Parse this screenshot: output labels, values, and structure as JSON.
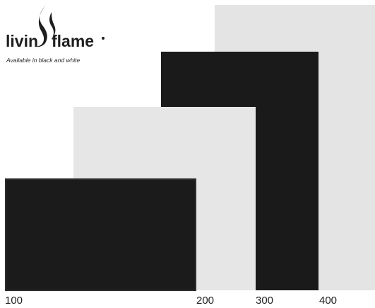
{
  "logo": {
    "word_left": "livin",
    "word_right": "flame",
    "tagline": "Available in black and white",
    "icon": "flame-icon"
  },
  "sizes": {
    "s100": {
      "label": "100",
      "color": "black"
    },
    "s200": {
      "label": "200",
      "color": "white"
    },
    "s300": {
      "label": "300",
      "color": "black"
    },
    "s400": {
      "label": "400",
      "color": "white"
    }
  },
  "colors": {
    "black_panel": "#1a1a1a",
    "white_panel": "#e4e4e4",
    "background": "#ffffff"
  }
}
